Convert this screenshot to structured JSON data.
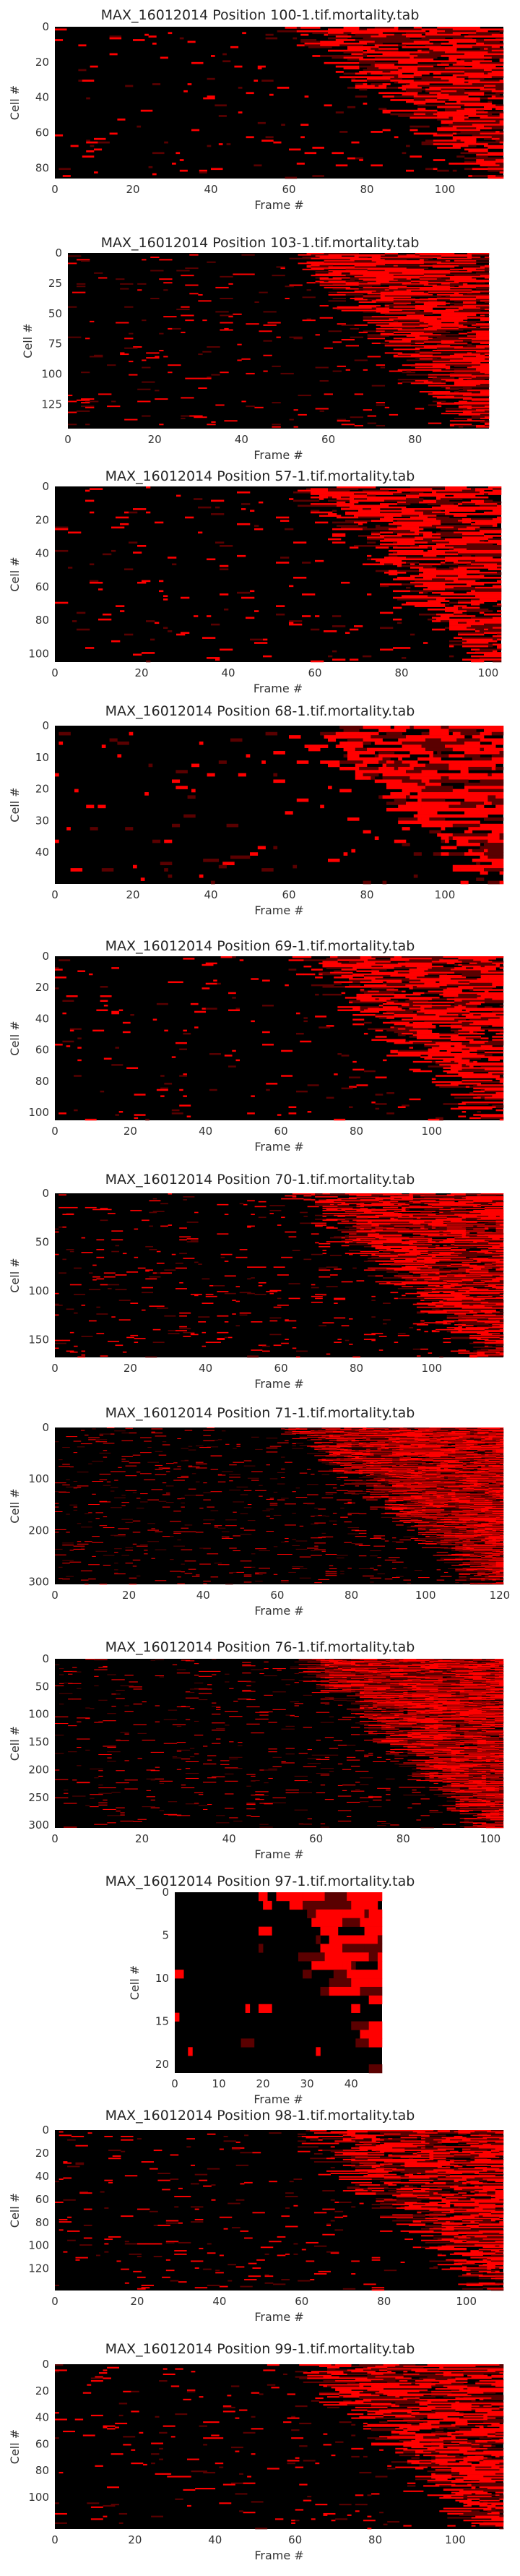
{
  "colors": {
    "background": "#000000",
    "accent": "#ff0000",
    "dark_red": "#5a0000"
  },
  "chart_data": [
    {
      "type": "heatmap",
      "title": "MAX_16012014 Position 100-1.tif.mortality.tab",
      "xlabel": "Frame #",
      "ylabel": "Cell #",
      "rows": 86,
      "cols": 115,
      "xlim": [
        0,
        115
      ],
      "ylim": [
        0,
        86
      ],
      "xticks": [
        "0",
        "20",
        "40",
        "60",
        "80",
        "100"
      ],
      "yticks": [
        "0",
        "20",
        "40",
        "60",
        "80"
      ],
      "xtick_values": [
        0,
        20,
        40,
        60,
        80,
        100
      ],
      "ytick_values": [
        0,
        20,
        40,
        60,
        80
      ]
    },
    {
      "type": "heatmap",
      "title": "MAX_16012014 Position 103-1.tif.mortality.tab",
      "xlabel": "Frame #",
      "ylabel": "Cell #",
      "rows": 145,
      "cols": 97,
      "xlim": [
        0,
        97
      ],
      "ylim": [
        0,
        145
      ],
      "xticks": [
        "0",
        "20",
        "40",
        "60",
        "80"
      ],
      "yticks": [
        "0",
        "25",
        "50",
        "75",
        "100",
        "125"
      ],
      "xtick_values": [
        0,
        20,
        40,
        60,
        80
      ],
      "ytick_values": [
        0,
        25,
        50,
        75,
        100,
        125
      ]
    },
    {
      "type": "heatmap",
      "title": "MAX_16012014 Position 57-1.tif.mortality.tab",
      "xlabel": "Frame #",
      "ylabel": "Cell #",
      "rows": 105,
      "cols": 103,
      "xlim": [
        0,
        103
      ],
      "ylim": [
        0,
        105
      ],
      "xticks": [
        "0",
        "20",
        "40",
        "60",
        "80",
        "100"
      ],
      "yticks": [
        "0",
        "20",
        "40",
        "60",
        "80",
        "100"
      ],
      "xtick_values": [
        0,
        20,
        40,
        60,
        80,
        100
      ],
      "ytick_values": [
        0,
        20,
        40,
        60,
        80,
        100
      ]
    },
    {
      "type": "heatmap",
      "title": "MAX_16012014 Position 68-1.tif.mortality.tab",
      "xlabel": "Frame #",
      "ylabel": "Cell #",
      "rows": 50,
      "cols": 115,
      "xlim": [
        0,
        115
      ],
      "ylim": [
        0,
        50
      ],
      "xticks": [
        "0",
        "20",
        "40",
        "60",
        "80",
        "100"
      ],
      "yticks": [
        "0",
        "10",
        "20",
        "30",
        "40"
      ],
      "xtick_values": [
        0,
        20,
        40,
        60,
        80,
        100
      ],
      "ytick_values": [
        0,
        10,
        20,
        30,
        40
      ]
    },
    {
      "type": "heatmap",
      "title": "MAX_16012014 Position 69-1.tif.mortality.tab",
      "xlabel": "Frame #",
      "ylabel": "Cell #",
      "rows": 105,
      "cols": 119,
      "xlim": [
        0,
        119
      ],
      "ylim": [
        0,
        105
      ],
      "xticks": [
        "0",
        "20",
        "40",
        "60",
        "80",
        "100"
      ],
      "yticks": [
        "0",
        "20",
        "40",
        "60",
        "80",
        "100"
      ],
      "xtick_values": [
        0,
        20,
        40,
        60,
        80,
        100
      ],
      "ytick_values": [
        0,
        20,
        40,
        60,
        80,
        100
      ]
    },
    {
      "type": "heatmap",
      "title": "MAX_16012014 Position 70-1.tif.mortality.tab",
      "xlabel": "Frame #",
      "ylabel": "Cell #",
      "rows": 168,
      "cols": 119,
      "xlim": [
        0,
        119
      ],
      "ylim": [
        0,
        168
      ],
      "xticks": [
        "0",
        "20",
        "40",
        "60",
        "80",
        "100"
      ],
      "yticks": [
        "0",
        "50",
        "100",
        "150"
      ],
      "xtick_values": [
        0,
        20,
        40,
        60,
        80,
        100
      ],
      "ytick_values": [
        0,
        50,
        100,
        150
      ]
    },
    {
      "type": "heatmap",
      "title": "MAX_16012014 Position 71-1.tif.mortality.tab",
      "xlabel": "Frame #",
      "ylabel": "Cell #",
      "rows": 305,
      "cols": 121,
      "xlim": [
        0,
        121
      ],
      "ylim": [
        0,
        305
      ],
      "xticks": [
        "0",
        "20",
        "40",
        "60",
        "80",
        "100",
        "120"
      ],
      "yticks": [
        "0",
        "100",
        "200",
        "300"
      ],
      "xtick_values": [
        0,
        20,
        40,
        60,
        80,
        100,
        120
      ],
      "ytick_values": [
        0,
        100,
        200,
        300
      ]
    },
    {
      "type": "heatmap",
      "title": "MAX_16012014 Position 76-1.tif.mortality.tab",
      "xlabel": "Frame #",
      "ylabel": "Cell #",
      "rows": 305,
      "cols": 103,
      "xlim": [
        0,
        103
      ],
      "ylim": [
        0,
        305
      ],
      "xticks": [
        "0",
        "20",
        "40",
        "60",
        "80",
        "100"
      ],
      "yticks": [
        "0",
        "50",
        "100",
        "150",
        "200",
        "250",
        "300"
      ],
      "xtick_values": [
        0,
        20,
        40,
        60,
        80,
        100
      ],
      "ytick_values": [
        0,
        50,
        100,
        150,
        200,
        250,
        300
      ]
    },
    {
      "type": "heatmap",
      "title": "MAX_16012014 Position 97-1.tif.mortality.tab",
      "xlabel": "Frame #",
      "ylabel": "Cell #",
      "rows": 21,
      "cols": 47,
      "xlim": [
        0,
        47
      ],
      "ylim": [
        0,
        21
      ],
      "xticks": [
        "0",
        "10",
        "20",
        "30",
        "40"
      ],
      "yticks": [
        "0",
        "5",
        "10",
        "15",
        "20"
      ],
      "xtick_values": [
        0,
        10,
        20,
        30,
        40
      ],
      "ytick_values": [
        0,
        5,
        10,
        15,
        20
      ]
    },
    {
      "type": "heatmap",
      "title": "MAX_16012014 Position 98-1.tif.mortality.tab",
      "xlabel": "Frame #",
      "ylabel": "Cell #",
      "rows": 139,
      "cols": 109,
      "xlim": [
        0,
        109
      ],
      "ylim": [
        0,
        139
      ],
      "xticks": [
        "0",
        "20",
        "40",
        "60",
        "80",
        "100"
      ],
      "yticks": [
        "0",
        "20",
        "40",
        "60",
        "80",
        "100",
        "120"
      ],
      "xtick_values": [
        0,
        20,
        40,
        60,
        80,
        100
      ],
      "ytick_values": [
        0,
        20,
        40,
        60,
        80,
        100,
        120
      ]
    },
    {
      "type": "heatmap",
      "title": "MAX_16012014 Position 99-1.tif.mortality.tab",
      "xlabel": "Frame #",
      "ylabel": "Cell #",
      "rows": 124,
      "cols": 112,
      "xlim": [
        0,
        112
      ],
      "ylim": [
        0,
        124
      ],
      "xticks": [
        "0",
        "20",
        "40",
        "60",
        "80",
        "100"
      ],
      "yticks": [
        "0",
        "20",
        "40",
        "60",
        "80",
        "100"
      ],
      "xtick_values": [
        0,
        20,
        40,
        60,
        80,
        100
      ],
      "ytick_values": [
        0,
        20,
        40,
        60,
        80,
        100
      ]
    }
  ]
}
